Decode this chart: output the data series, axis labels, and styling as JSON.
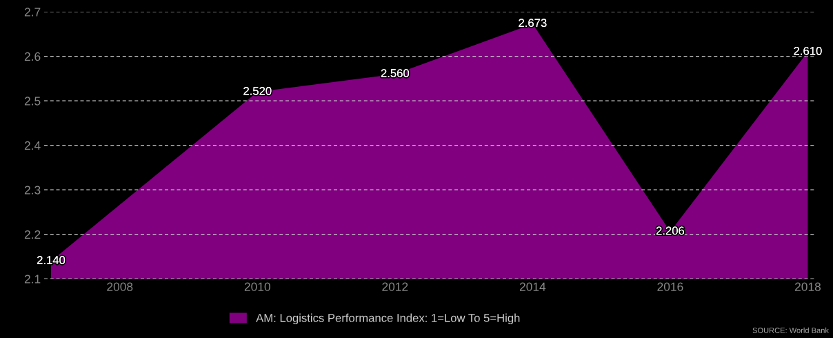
{
  "chart_data": {
    "type": "area",
    "x": [
      2007,
      2010,
      2012,
      2014,
      2016,
      2018
    ],
    "series": [
      {
        "name": "AM: Logistics Performance Index: 1=Low To 5=High",
        "color": "#800080",
        "values": [
          2.14,
          2.52,
          2.56,
          2.673,
          2.206,
          2.61
        ]
      }
    ],
    "value_labels": [
      "2.140",
      "2.520",
      "2.560",
      "2.673",
      "2.206",
      "2.610"
    ],
    "xlim": [
      2006.9,
      2018.1
    ],
    "xticks": [
      2008,
      2010,
      2012,
      2014,
      2016,
      2018
    ],
    "ylim": [
      2.1,
      2.7
    ],
    "yticks": [
      2.1,
      2.2,
      2.3,
      2.4,
      2.5,
      2.6,
      2.7
    ],
    "grid": "y",
    "legend": "bottom",
    "annotations": [
      "SOURCE: World Bank"
    ]
  }
}
